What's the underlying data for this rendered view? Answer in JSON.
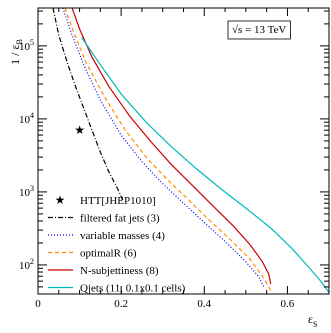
{
  "chart_data": {
    "type": "line",
    "title": "",
    "xlabel": "ε",
    "xlabel_sub": "S",
    "ylabel": "1 / ε",
    "ylabel_sub": "B",
    "xlim": [
      0,
      0.7
    ],
    "ylim": [
      40,
      330000
    ],
    "ylog": true,
    "grid": false,
    "legend": "bottom-left",
    "annotation": "√s = 13 TeV",
    "x_tick_labels": [
      "0",
      "0.2",
      "0.4",
      "0.6"
    ],
    "x_tick_values": [
      0,
      0.2,
      0.4,
      0.6
    ],
    "y_tick_labels": [
      {
        "base": "10",
        "exp": "2",
        "value": 100
      },
      {
        "base": "10",
        "exp": "3",
        "value": 1000
      },
      {
        "base": "10",
        "exp": "4",
        "value": 10000
      },
      {
        "base": "10",
        "exp": "5",
        "value": 100000
      }
    ],
    "series": [
      {
        "name": "HTT[JHEP1010]",
        "kind": "marker",
        "color": "#000000",
        "points": [
          [
            0.1,
            7000
          ]
        ]
      },
      {
        "name": "filtered fat jets (3)",
        "kind": "line",
        "dash": "dashdot",
        "color": "#000000",
        "points": [
          [
            0.036,
            330000
          ],
          [
            0.05,
            140000
          ],
          [
            0.07,
            60000
          ],
          [
            0.09,
            28000
          ],
          [
            0.11,
            14000
          ],
          [
            0.13,
            7000
          ],
          [
            0.15,
            3500
          ],
          [
            0.17,
            1900
          ],
          [
            0.19,
            1150
          ],
          [
            0.205,
            750
          ]
        ]
      },
      {
        "name": "variable masses (4)",
        "kind": "line",
        "dash": "dot",
        "color": "#0000ee",
        "points": [
          [
            0.06,
            330000
          ],
          [
            0.08,
            150000
          ],
          [
            0.11,
            55000
          ],
          [
            0.15,
            18000
          ],
          [
            0.2,
            6000
          ],
          [
            0.25,
            2600
          ],
          [
            0.3,
            1300
          ],
          [
            0.35,
            700
          ],
          [
            0.4,
            380
          ],
          [
            0.45,
            210
          ],
          [
            0.5,
            110
          ],
          [
            0.53,
            70
          ],
          [
            0.545,
            48
          ]
        ]
      },
      {
        "name": "optimalR (6)",
        "kind": "line",
        "dash": "dash",
        "color": "#ff8c00",
        "points": [
          [
            0.065,
            330000
          ],
          [
            0.085,
            160000
          ],
          [
            0.115,
            60000
          ],
          [
            0.16,
            20000
          ],
          [
            0.21,
            7000
          ],
          [
            0.26,
            3000
          ],
          [
            0.31,
            1500
          ],
          [
            0.36,
            800
          ],
          [
            0.41,
            420
          ],
          [
            0.46,
            230
          ],
          [
            0.51,
            120
          ],
          [
            0.54,
            70
          ],
          [
            0.56,
            45
          ]
        ]
      },
      {
        "name": "N-subjettiness (8)",
        "kind": "line",
        "dash": "solid",
        "color": "#cc0000",
        "points": [
          [
            0.082,
            330000
          ],
          [
            0.1,
            170000
          ],
          [
            0.13,
            70000
          ],
          [
            0.17,
            28000
          ],
          [
            0.22,
            11000
          ],
          [
            0.27,
            5000
          ],
          [
            0.32,
            2400
          ],
          [
            0.37,
            1250
          ],
          [
            0.42,
            650
          ],
          [
            0.47,
            340
          ],
          [
            0.51,
            190
          ],
          [
            0.54,
            110
          ],
          [
            0.555,
            75
          ],
          [
            0.56,
            55
          ]
        ]
      },
      {
        "name": "Qjets (11, 0.1x0.1 cells)",
        "kind": "line",
        "dash": "solid",
        "color": "#00bbbb",
        "points": [
          [
            0.105,
            130000
          ],
          [
            0.15,
            55000
          ],
          [
            0.2,
            22000
          ],
          [
            0.26,
            9000
          ],
          [
            0.32,
            4200
          ],
          [
            0.38,
            2100
          ],
          [
            0.44,
            1100
          ],
          [
            0.5,
            600
          ],
          [
            0.56,
            320
          ],
          [
            0.61,
            170
          ],
          [
            0.65,
            95
          ],
          [
            0.68,
            60
          ],
          [
            0.7,
            42
          ]
        ]
      }
    ]
  }
}
